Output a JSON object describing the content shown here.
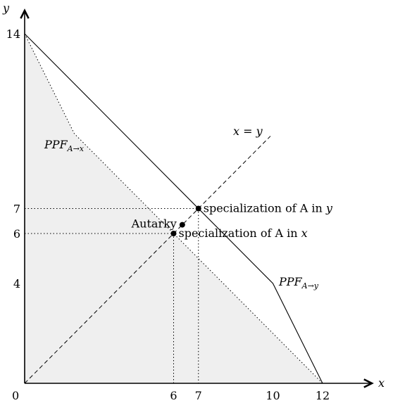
{
  "axes": {
    "x_label": "x",
    "y_label": "y",
    "origin_label": "0",
    "x_ticks": [
      {
        "value": 6,
        "label": "6"
      },
      {
        "value": 7,
        "label": "7"
      },
      {
        "value": 10,
        "label": "10"
      },
      {
        "value": 12,
        "label": "12"
      }
    ],
    "y_ticks": [
      {
        "value": 14,
        "label": "14"
      },
      {
        "value": 7,
        "label": "7"
      },
      {
        "value": 6,
        "label": "6"
      },
      {
        "value": 4,
        "label": "4"
      }
    ]
  },
  "ppf_y": {
    "label_main": "PPF",
    "label_sub": "A→y",
    "points": [
      [
        0,
        14
      ],
      [
        10,
        4
      ],
      [
        12,
        0
      ]
    ]
  },
  "ppf_x": {
    "label_main": "PPF",
    "label_sub": "A→x",
    "points": [
      [
        0,
        14
      ],
      [
        2,
        10
      ],
      [
        12,
        0
      ]
    ]
  },
  "diagonal": {
    "label": "x = y",
    "from": [
      0,
      0
    ],
    "to": [
      9.9,
      9.9
    ]
  },
  "points": [
    {
      "key": "spec_y",
      "x": 7,
      "y": 7,
      "text": "specialization of A in ",
      "var": "y"
    },
    {
      "key": "spec_x",
      "x": 6,
      "y": 6,
      "text": "specialization of A in ",
      "var": "x"
    },
    {
      "key": "autarky",
      "x": 6.35,
      "y": 6.35,
      "text": "Autarky",
      "var": ""
    }
  ],
  "colors": {
    "shade": "#efefef",
    "ink": "#000000"
  }
}
